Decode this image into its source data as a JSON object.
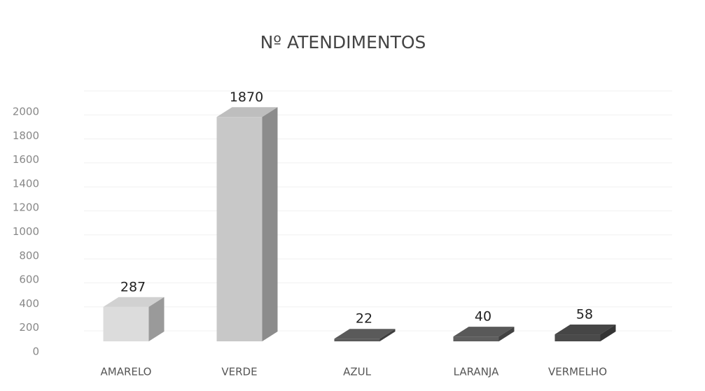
{
  "chart_data": {
    "type": "bar3d",
    "title": "Nº ATENDIMENTOS",
    "categories": [
      "AMARELO",
      "VERDE",
      "AZUL",
      "LARANJA",
      "VERMELHO"
    ],
    "values": [
      287,
      1870,
      22,
      40,
      58
    ],
    "colors": [
      "#dcdcdc",
      "#c8c8c8",
      "#5a5a5a",
      "#5e5e5e",
      "#4a4a4a"
    ],
    "ylim": [
      0,
      2000
    ],
    "yticks": [
      0,
      200,
      400,
      600,
      800,
      1000,
      1200,
      1400,
      1600,
      1800,
      2000
    ],
    "grid": true
  }
}
